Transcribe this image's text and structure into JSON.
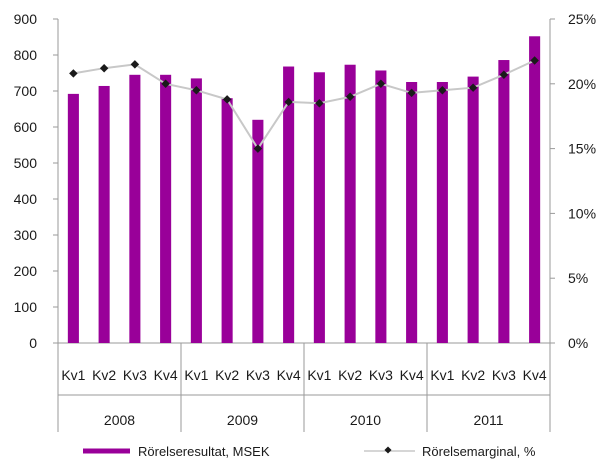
{
  "chart_data": {
    "type": "bar",
    "categories": [
      "Kv1",
      "Kv2",
      "Kv3",
      "Kv4",
      "Kv1",
      "Kv2",
      "Kv3",
      "Kv4",
      "Kv1",
      "Kv2",
      "Kv3",
      "Kv4",
      "Kv1",
      "Kv2",
      "Kv3",
      "Kv4"
    ],
    "groups": [
      {
        "label": "2008",
        "span": 4
      },
      {
        "label": "2009",
        "span": 4
      },
      {
        "label": "2010",
        "span": 4
      },
      {
        "label": "2011",
        "span": 4
      }
    ],
    "series": [
      {
        "name": "Rörelseresultat, MSEK",
        "type": "bar",
        "axis": "left",
        "color": "#990099",
        "values": [
          692,
          714,
          745,
          745,
          735,
          680,
          620,
          768,
          752,
          773,
          757,
          725,
          725,
          740,
          786,
          852
        ]
      },
      {
        "name": "Rörelsemarginal, %",
        "type": "line",
        "axis": "right",
        "color": "#c8c8c8",
        "marker_color": "#1a1a1a",
        "values": [
          20.8,
          21.2,
          21.5,
          20.0,
          19.5,
          18.8,
          15.0,
          18.6,
          18.5,
          19.0,
          20.0,
          19.3,
          19.5,
          19.7,
          20.7,
          21.8
        ]
      }
    ],
    "left_axis": {
      "min": 0,
      "max": 900,
      "ticks": [
        "0",
        "100",
        "200",
        "300",
        "400",
        "500",
        "600",
        "700",
        "800",
        "900"
      ]
    },
    "right_axis": {
      "min": 0,
      "max": 25,
      "ticks": [
        "0%",
        "5%",
        "10%",
        "15%",
        "20%",
        "25%"
      ]
    },
    "grid": false,
    "legend_position": "bottom"
  }
}
